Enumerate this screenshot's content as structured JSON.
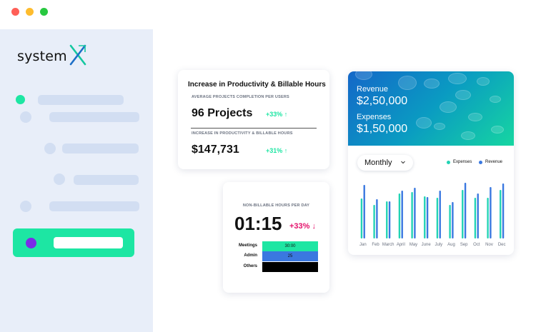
{
  "window": {
    "dots": [
      {
        "name": "close",
        "color": "#ff5f57"
      },
      {
        "name": "minimize",
        "color": "#febc2e"
      },
      {
        "name": "zoom",
        "color": "#28c840"
      }
    ]
  },
  "sidebar": {
    "logo_text": "system",
    "logo_icon": "x-mark-icon",
    "colors": {
      "accent": "#1de6a3",
      "active_dot": "#7a2ce8",
      "placeholder": "#d2def2",
      "background": "#e8eef9"
    }
  },
  "productivity": {
    "title": "Increase in Productivity & Billable Hours",
    "metric1_caption": "AVERAGE PROJECTS COMPLETION PER USERS",
    "metric1_value": "96 Projects",
    "metric1_change": "+33% ↑",
    "metric2_caption": "INCREASE IN PRODUCTIVITY & BILLABLE HOURS",
    "metric2_value": "$147,731",
    "metric2_change": "+31% ↑"
  },
  "nonbillable": {
    "caption": "NON-BILLABLE HOURS PER DAY",
    "time": "01:15",
    "change": "+33% ↓",
    "rows": [
      {
        "label": "Meetings",
        "value": "30:00",
        "color": "#1de6a3"
      },
      {
        "label": "Admin",
        "value": "25",
        "color": "#3a78e0"
      },
      {
        "label": "Others",
        "value": "",
        "color": "#000000"
      }
    ]
  },
  "revenue": {
    "revenue_label": "Revenue",
    "revenue_value": "$2,50,000",
    "expenses_label": "Expenses",
    "expenses_value": "$1,50,000",
    "period_select": "Monthly",
    "legend": [
      {
        "label": "Expenses",
        "color": "#22d3b4"
      },
      {
        "label": "Revenue",
        "color": "#3a78e0"
      }
    ]
  },
  "chart_data": {
    "type": "bar",
    "categories": [
      "Jan",
      "Feb",
      "March",
      "April",
      "May",
      "June",
      "July",
      "Aug",
      "Sep",
      "Oct",
      "Nov",
      "Dec"
    ],
    "series": [
      {
        "name": "Expenses",
        "color": "#22d3b4",
        "values": [
          56,
          47,
          52,
          63,
          65,
          59,
          57,
          47,
          68,
          57,
          57,
          68
        ]
      },
      {
        "name": "Revenue",
        "color": "#3a78e0",
        "values": [
          75,
          55,
          52,
          67,
          71,
          58,
          67,
          51,
          78,
          63,
          72,
          77
        ]
      }
    ],
    "ylim": [
      0,
      80
    ],
    "grid": false,
    "legend_position": "top-right"
  }
}
